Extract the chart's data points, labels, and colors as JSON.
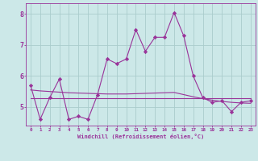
{
  "xlabel": "Windchill (Refroidissement éolien,°C)",
  "background_color": "#cce8e8",
  "grid_color": "#aacccc",
  "line_color": "#993399",
  "xlim": [
    -0.5,
    23.5
  ],
  "ylim": [
    4.4,
    8.35
  ],
  "xticks": [
    0,
    1,
    2,
    3,
    4,
    5,
    6,
    7,
    8,
    9,
    10,
    11,
    12,
    13,
    14,
    15,
    16,
    17,
    18,
    19,
    20,
    21,
    22,
    23
  ],
  "yticks": [
    5,
    6,
    7,
    8
  ],
  "line1_x": [
    0,
    1,
    2,
    3,
    4,
    5,
    6,
    7,
    8,
    9,
    10,
    11,
    12,
    13,
    14,
    15,
    16,
    17,
    18,
    19,
    20,
    21,
    22,
    23
  ],
  "line1_y": [
    5.7,
    4.6,
    5.3,
    5.9,
    4.6,
    4.7,
    4.6,
    5.4,
    6.55,
    6.4,
    6.55,
    7.5,
    6.8,
    7.25,
    7.25,
    8.05,
    7.3,
    6.0,
    5.3,
    5.15,
    5.2,
    4.85,
    5.15,
    5.2
  ],
  "line2_x": [
    0,
    1,
    2,
    3,
    4,
    5,
    6,
    7,
    8,
    9,
    10,
    11,
    12,
    13,
    14,
    15,
    16,
    17,
    18,
    19,
    20,
    21,
    22,
    23
  ],
  "line2_y": [
    5.28,
    5.28,
    5.28,
    5.28,
    5.28,
    5.28,
    5.28,
    5.28,
    5.28,
    5.28,
    5.28,
    5.28,
    5.28,
    5.28,
    5.28,
    5.28,
    5.28,
    5.28,
    5.28,
    5.28,
    5.28,
    5.28,
    5.28,
    5.28
  ],
  "line3_x": [
    0,
    1,
    2,
    3,
    4,
    5,
    6,
    7,
    8,
    9,
    10,
    11,
    12,
    13,
    14,
    15,
    16,
    17,
    18,
    19,
    20,
    21,
    22,
    23
  ],
  "line3_y": [
    5.55,
    5.52,
    5.5,
    5.48,
    5.46,
    5.45,
    5.44,
    5.43,
    5.42,
    5.42,
    5.42,
    5.43,
    5.44,
    5.45,
    5.46,
    5.47,
    5.4,
    5.33,
    5.27,
    5.22,
    5.18,
    5.15,
    5.13,
    5.12
  ]
}
